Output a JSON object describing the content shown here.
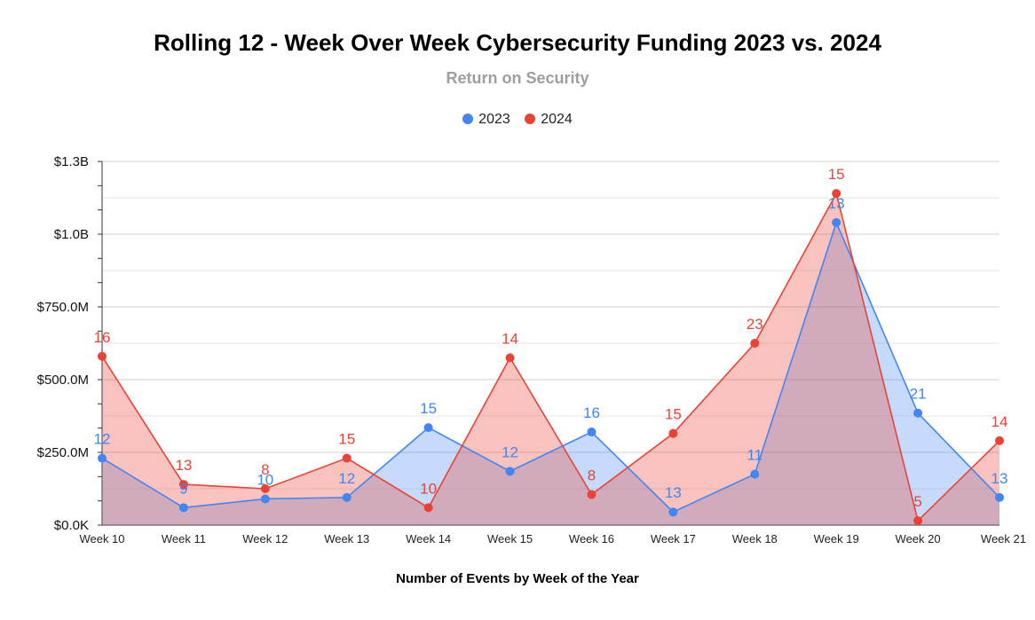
{
  "chart_data": {
    "type": "area",
    "title": "Rolling 12 - Week Over Week Cybersecurity Funding 2023 vs. 2024",
    "subtitle": "Return on Security",
    "xlabel": "Number of Events by Week of the Year",
    "ylabel": "",
    "categories": [
      "Week 10",
      "Week 11",
      "Week 12",
      "Week 13",
      "Week 14",
      "Week 15",
      "Week 16",
      "Week 17",
      "Week 18",
      "Week 19",
      "Week 20",
      "Week 21"
    ],
    "ylim": [
      0,
      1250000000
    ],
    "yticks": [
      {
        "value": 0,
        "label": "$0.0K"
      },
      {
        "value": 250000000,
        "label": "$250.0M"
      },
      {
        "value": 500000000,
        "label": "$500.0M"
      },
      {
        "value": 750000000,
        "label": "$750.0M"
      },
      {
        "value": 1000000000,
        "label": "$1.0B"
      },
      {
        "value": 1250000000,
        "label": "$1.3B"
      }
    ],
    "grid": true,
    "legend_position": "top-center",
    "series": [
      {
        "name": "2023",
        "color": "#4285f4",
        "fill": "#4285f4",
        "values": [
          230000000,
          60000000,
          90000000,
          95000000,
          335000000,
          185000000,
          320000000,
          45000000,
          175000000,
          1040000000,
          385000000,
          95000000
        ],
        "labels": [
          "12",
          "9",
          "10",
          "12",
          "15",
          "12",
          "16",
          "13",
          "11",
          "13",
          "21",
          "13"
        ]
      },
      {
        "name": "2024",
        "color": "#ea4335",
        "fill": "#ea4335",
        "values": [
          580000000,
          140000000,
          125000000,
          230000000,
          60000000,
          575000000,
          105000000,
          315000000,
          625000000,
          1140000000,
          15000000,
          290000000
        ],
        "labels": [
          "16",
          "13",
          "8",
          "15",
          "10",
          "14",
          "8",
          "15",
          "23",
          "15",
          "5",
          "14"
        ]
      }
    ]
  }
}
